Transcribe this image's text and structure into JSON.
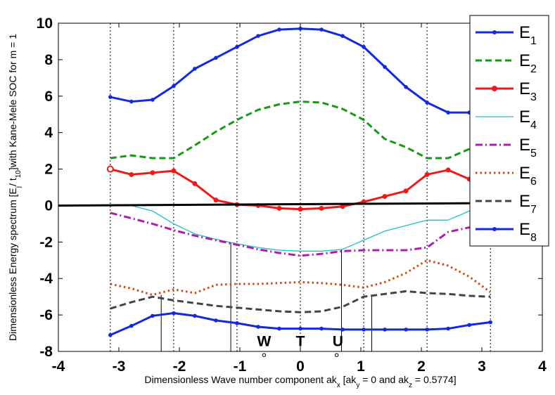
{
  "chart_data": {
    "type": "line",
    "title": "",
    "xlabel": "Dimensionless Wave number component ak",
    "xlabel_parts": [
      {
        "t": "Dimensionless Wave number component ak",
        "sub": false
      },
      {
        "t": "x",
        "sub": true
      },
      {
        "t": " [ak",
        "sub": false
      },
      {
        "t": "y",
        "sub": true
      },
      {
        "t": " = 0 and ak",
        "sub": false
      },
      {
        "t": "z",
        "sub": true
      },
      {
        "t": " = 0.5774]",
        "sub": false
      }
    ],
    "ylabel": "Dimensionless Energy spectrum [E/ t] with Kane-Mele SOC for m = 1",
    "ylabel_parts": [
      {
        "t": "Dimensionless Energy spectrum [E",
        "sub": false
      },
      {
        "t": "j",
        "sub": true
      },
      {
        "t": "/ t",
        "sub": false
      },
      {
        "t": "10",
        "sub": true
      },
      {
        "t": "]with Kane-Mele SOC for m = 1",
        "sub": false
      }
    ],
    "xlim": [
      -4,
      4
    ],
    "ylim": [
      -8,
      10
    ],
    "xticks": [
      "-4",
      "-3",
      "-2",
      "-1",
      "0",
      "1",
      "2",
      "3",
      "4"
    ],
    "yticks": [
      "-8",
      "-6",
      "-4",
      "-2",
      "0",
      "2",
      "4",
      "6",
      "8",
      "10"
    ],
    "vertical_dotted_lines_x": [
      -3.1416,
      -2.0944,
      -1.0472,
      0,
      1.0472,
      2.0944,
      3.1416
    ],
    "legend_position": "top-right",
    "point_labels": [
      {
        "text": "W",
        "x": -0.6,
        "y": -7.4
      },
      {
        "text": "T",
        "x": 0.0,
        "y": -7.4
      },
      {
        "text": "U",
        "x": 0.62,
        "y": -7.4
      }
    ],
    "point_markers": [
      {
        "x": -0.6,
        "y": -8.2
      },
      {
        "x": 0.6,
        "y": -8.2
      }
    ],
    "series": [
      {
        "name": "E",
        "sub": "1",
        "color": "#1428e0",
        "dash": "solid",
        "width": 3,
        "marker": "dot",
        "x": [
          -3.1416,
          -2.7925,
          -2.4435,
          -2.0944,
          -1.7453,
          -1.3963,
          -1.0472,
          -0.6981,
          -0.3491,
          0,
          0.3491,
          0.6981,
          1.0472,
          1.3963,
          1.7453,
          2.0944,
          2.4435,
          2.7925,
          3.1416
        ],
        "y": [
          5.95,
          5.7,
          5.8,
          6.55,
          7.5,
          8.1,
          8.7,
          9.3,
          9.65,
          9.7,
          9.65,
          9.3,
          8.7,
          7.6,
          6.5,
          5.65,
          5.1,
          5.1,
          5.2
        ]
      },
      {
        "name": "E",
        "sub": "2",
        "color": "#159a15",
        "dash": "dashed",
        "width": 3,
        "marker": "none",
        "x": [
          -3.1416,
          -2.7925,
          -2.4435,
          -2.0944,
          -1.7453,
          -1.3963,
          -1.0472,
          -0.6981,
          -0.3491,
          0,
          0.3491,
          0.6981,
          1.0472,
          1.3963,
          1.7453,
          2.0944,
          2.4435,
          2.7925,
          3.1416
        ],
        "y": [
          2.6,
          2.75,
          2.6,
          2.6,
          3.3,
          4.05,
          4.7,
          5.25,
          5.55,
          5.7,
          5.65,
          5.3,
          4.7,
          3.65,
          3.2,
          2.6,
          2.6,
          3.1,
          3.45
        ]
      },
      {
        "name": "E",
        "sub": "3",
        "color": "#ee1a1a",
        "dash": "solid",
        "width": 3,
        "marker": "dot",
        "x": [
          -3.1416,
          -2.7925,
          -2.4435,
          -2.0944,
          -1.7453,
          -1.3963,
          -1.0472,
          -0.6981,
          -0.3491,
          0,
          0.3491,
          0.6981,
          1.0472,
          1.3963,
          1.7453,
          2.0944,
          2.4435,
          2.7925,
          3.1416
        ],
        "y": [
          2.0,
          1.7,
          1.8,
          1.9,
          1.2,
          0.3,
          0.05,
          0.0,
          -0.15,
          -0.2,
          -0.15,
          -0.05,
          0.2,
          0.5,
          0.8,
          1.7,
          1.95,
          1.45,
          1.4
        ]
      },
      {
        "name": "E",
        "sub": "4",
        "color": "#20c0c0",
        "dash": "solid",
        "width": 1.3,
        "marker": "none",
        "x": [
          -3.1416,
          -2.7925,
          -2.4435,
          -2.0944,
          -1.7453,
          -1.3963,
          -1.0472,
          -0.6981,
          -0.3491,
          0,
          0.3491,
          0.6981,
          1.0472,
          1.3963,
          1.7453,
          2.0944,
          2.4435,
          2.7925,
          3.1416
        ],
        "y": [
          0.0,
          0.0,
          -0.3,
          -1.0,
          -1.55,
          -1.85,
          -2.1,
          -2.3,
          -2.45,
          -2.5,
          -2.5,
          -2.4,
          -1.9,
          -1.4,
          -1.1,
          -0.8,
          -0.8,
          -0.3,
          0.05
        ]
      },
      {
        "name": "E",
        "sub": "5",
        "color": "#b01cb0",
        "dash": "dashdot",
        "width": 3,
        "marker": "none",
        "x": [
          -3.1416,
          -2.7925,
          -2.4435,
          -2.0944,
          -1.7453,
          -1.3963,
          -1.0472,
          -0.6981,
          -0.3491,
          0,
          0.3491,
          0.6981,
          1.0472,
          1.3963,
          1.7453,
          2.0944,
          2.4435,
          2.7925,
          3.1416
        ],
        "y": [
          -0.4,
          -0.7,
          -1.0,
          -1.35,
          -1.65,
          -1.9,
          -2.15,
          -2.4,
          -2.6,
          -2.75,
          -2.65,
          -2.5,
          -2.45,
          -2.45,
          -2.45,
          -2.3,
          -1.45,
          -1.2,
          -1.05
        ]
      },
      {
        "name": "E",
        "sub": "6",
        "color": "#d04a14",
        "dash": "dotted",
        "width": 3,
        "marker": "none",
        "x": [
          -3.1416,
          -2.7925,
          -2.4435,
          -2.0944,
          -1.7453,
          -1.3963,
          -1.0472,
          -0.6981,
          -0.3491,
          0,
          0.3491,
          0.6981,
          1.0472,
          1.3963,
          1.7453,
          2.0944,
          2.4435,
          2.7925,
          3.1416
        ],
        "y": [
          -4.3,
          -4.55,
          -4.9,
          -4.6,
          -4.8,
          -4.35,
          -4.3,
          -4.3,
          -4.25,
          -4.2,
          -4.25,
          -4.35,
          -4.5,
          -4.2,
          -3.7,
          -3.0,
          -3.3,
          -3.9,
          -4.75
        ]
      },
      {
        "name": "E",
        "sub": "7",
        "color": "#444444",
        "dash": "dashed",
        "width": 3,
        "marker": "none",
        "x": [
          -3.1416,
          -2.7925,
          -2.4435,
          -2.0944,
          -1.7453,
          -1.3963,
          -1.0472,
          -0.6981,
          -0.3491,
          0,
          0.3491,
          0.6981,
          1.0472,
          1.3963,
          1.7453,
          2.0944,
          2.4435,
          2.7925,
          3.1416
        ],
        "y": [
          -5.65,
          -5.3,
          -5.0,
          -5.2,
          -5.35,
          -5.5,
          -5.6,
          -5.7,
          -5.8,
          -5.85,
          -5.8,
          -5.55,
          -5.0,
          -4.85,
          -4.7,
          -4.8,
          -4.85,
          -4.95,
          -5.0
        ]
      },
      {
        "name": "E",
        "sub": "8",
        "color": "#1428e0",
        "dash": "solid",
        "width": 3,
        "marker": "dot",
        "x": [
          -3.1416,
          -2.7925,
          -2.4435,
          -2.0944,
          -1.7453,
          -1.3963,
          -1.0472,
          -0.6981,
          -0.3491,
          0,
          0.3491,
          0.6981,
          1.0472,
          1.3963,
          1.7453,
          2.0944,
          2.4435,
          2.7925,
          3.1416
        ],
        "y": [
          -7.1,
          -6.6,
          -6.05,
          -5.9,
          -6.05,
          -6.3,
          -6.45,
          -6.65,
          -6.75,
          -6.75,
          -6.75,
          -6.8,
          -6.8,
          -6.8,
          -6.8,
          -6.8,
          -6.75,
          -6.55,
          -6.4
        ]
      }
    ],
    "zero_line": {
      "y": [
        0.0,
        0.15
      ],
      "color": "#000000"
    },
    "thin_black_segments": [
      {
        "x": [
          -2.3,
          -2.3
        ],
        "y": [
          -8,
          -4.9
        ]
      },
      {
        "x": [
          -1.15,
          -1.15
        ],
        "y": [
          -8,
          -2.05
        ]
      },
      {
        "x": [
          0.68,
          0.68
        ],
        "y": [
          -8,
          -2.4
        ]
      },
      {
        "x": [
          1.18,
          1.18
        ],
        "y": [
          -8,
          -4.95
        ]
      }
    ]
  }
}
